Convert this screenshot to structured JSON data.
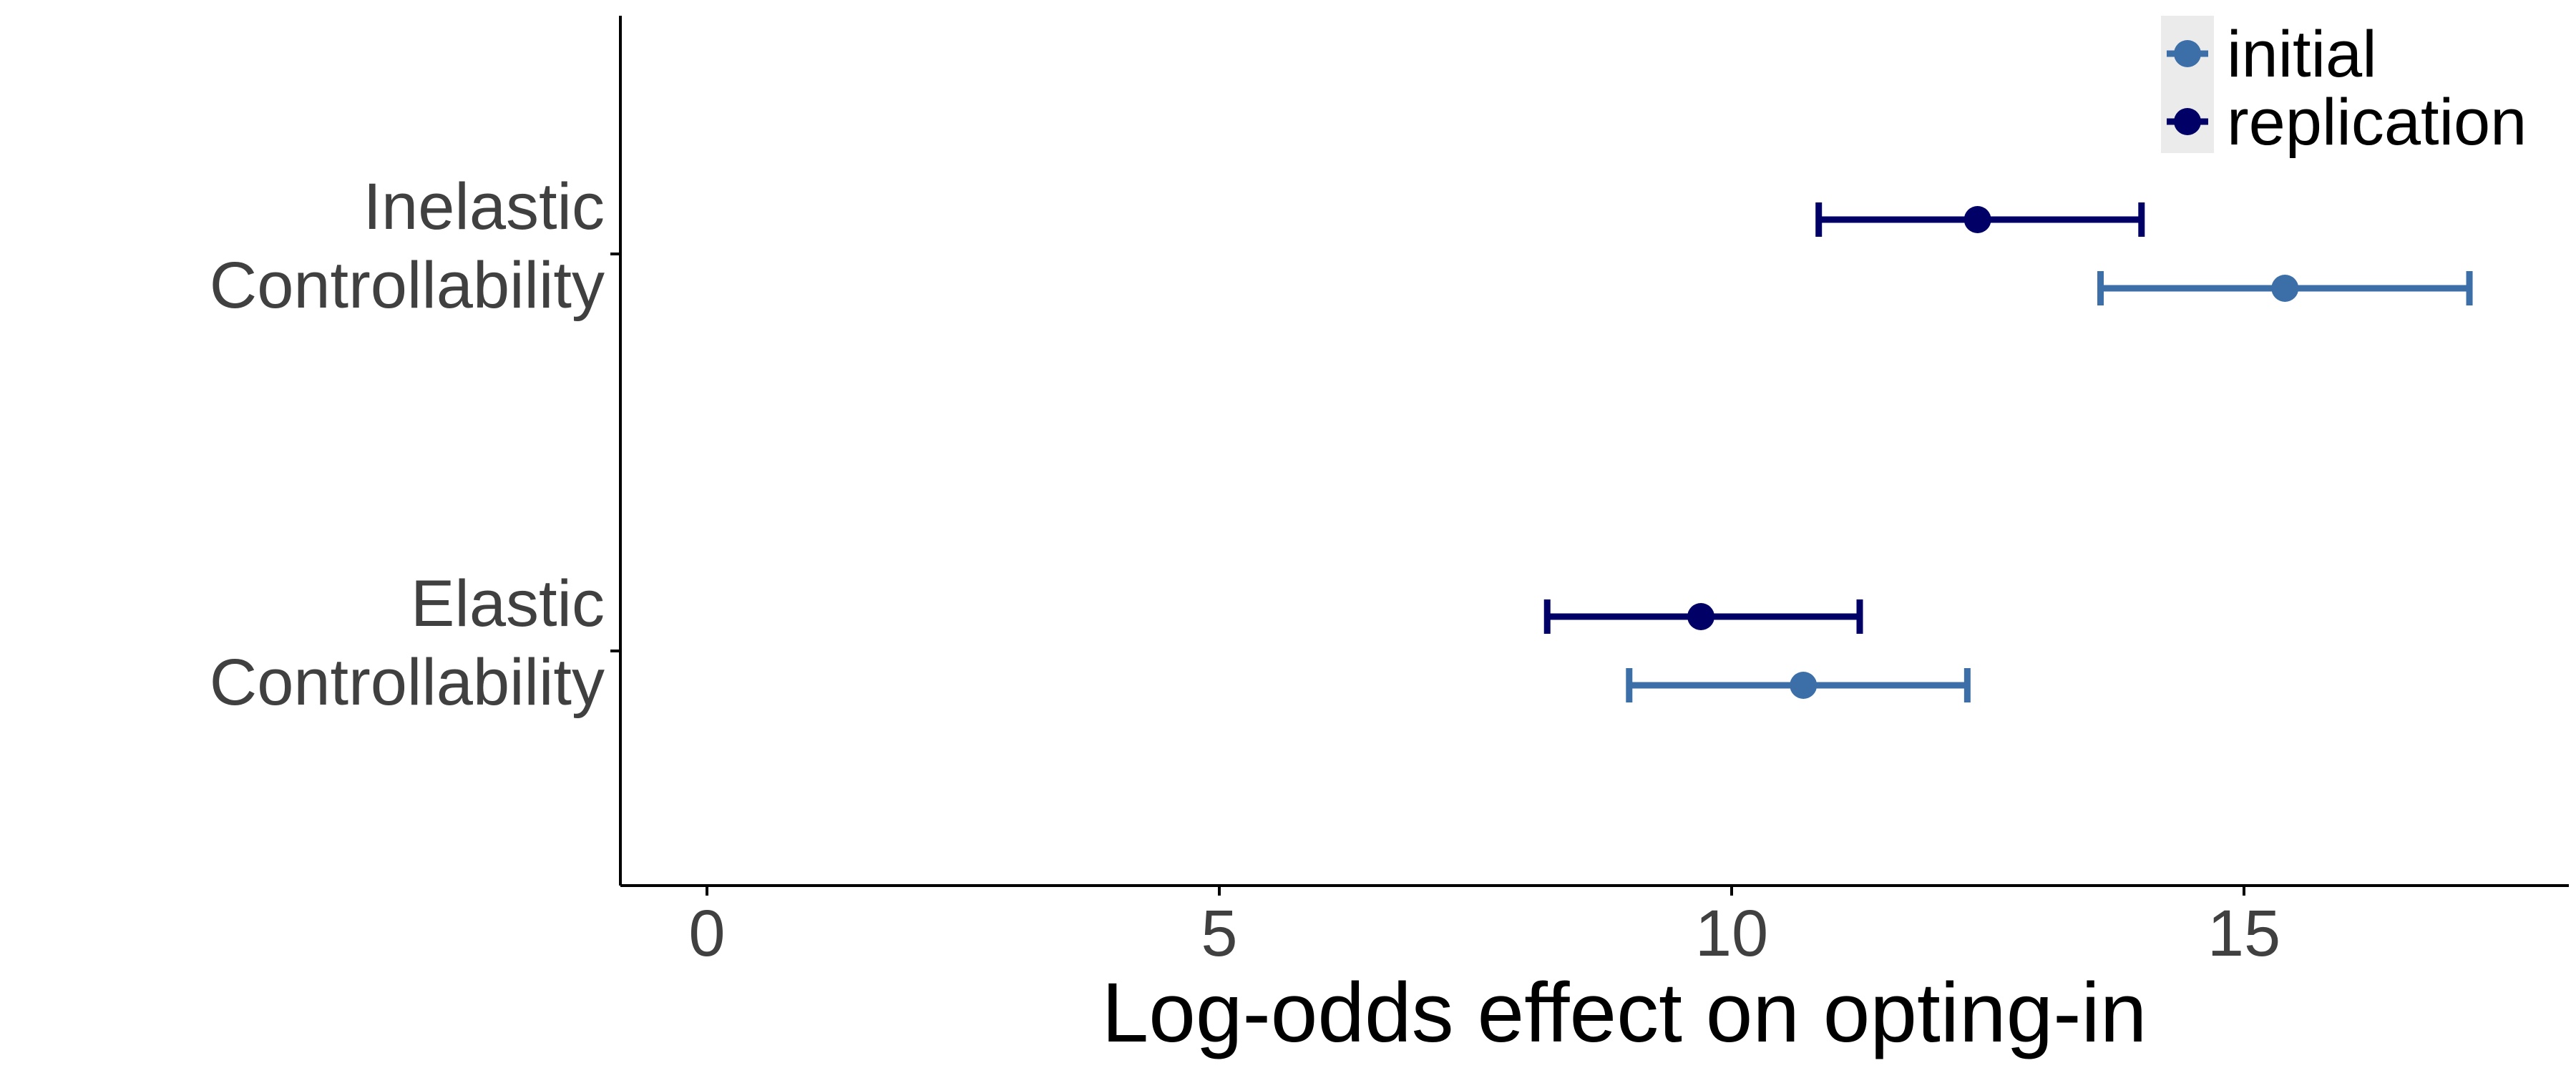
{
  "chart_data": {
    "type": "errorbar",
    "title": "",
    "xlabel": "Log-odds effect on opting-in",
    "ylabel": "",
    "xlim": [
      -0.85,
      18.2
    ],
    "x_ticks": [
      0,
      5,
      10,
      15
    ],
    "x_tick_labels": [
      "0",
      "5",
      "10",
      "15"
    ],
    "categories": [
      {
        "lines": [
          "Inelastic",
          "Controllability"
        ]
      },
      {
        "lines": [
          "Elastic",
          "Controllability"
        ]
      }
    ],
    "series": [
      {
        "name": "initial",
        "color": "#3C6EA7",
        "points": [
          {
            "category": "Inelastic Controllability",
            "estimate": 15.4,
            "ci_low": 13.6,
            "ci_high": 17.2
          },
          {
            "category": "Elastic Controllability",
            "estimate": 10.7,
            "ci_low": 9.0,
            "ci_high": 12.3
          }
        ]
      },
      {
        "name": "replication",
        "color": "#000066",
        "points": [
          {
            "category": "Inelastic Controllability",
            "estimate": 12.4,
            "ci_low": 10.85,
            "ci_high": 14.0
          },
          {
            "category": "Elastic Controllability",
            "estimate": 9.7,
            "ci_low": 8.2,
            "ci_high": 11.25
          }
        ]
      }
    ],
    "legend": {
      "position": "top-right",
      "entries": [
        "initial",
        "replication"
      ]
    },
    "grid": false
  }
}
